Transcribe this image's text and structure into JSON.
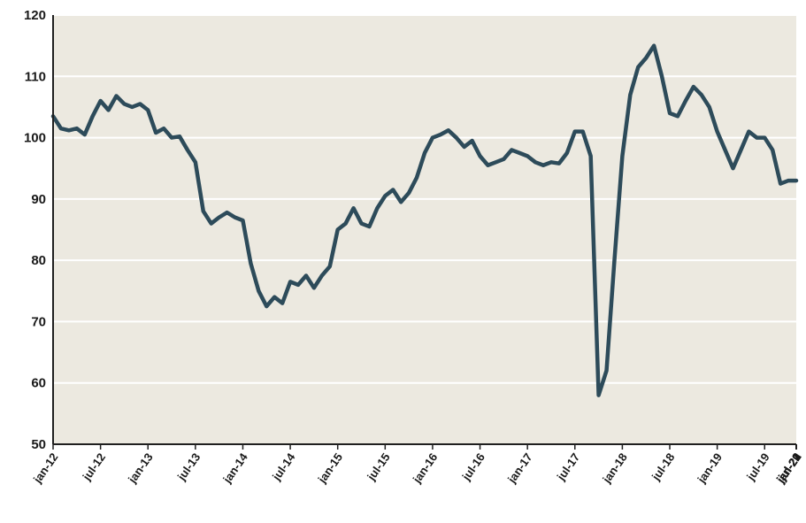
{
  "chart_data": {
    "type": "line",
    "title": "",
    "xlabel": "",
    "ylabel": "",
    "ylim": [
      50,
      120
    ],
    "y_ticks": [
      50,
      60,
      70,
      80,
      90,
      100,
      110,
      120
    ],
    "grid": "horizontal",
    "legend": "none",
    "x_tick_labels": [
      "jan-12",
      "jul-12",
      "jan-13",
      "jul-13",
      "jan-14",
      "jul-14",
      "jan-15",
      "jul-15",
      "jan-16",
      "jul-16",
      "jan-17",
      "jul-17",
      "jan-18",
      "jul-18",
      "jan-19",
      "jul-19",
      "jan-20",
      "jul-20",
      "jan-21",
      "jul-21",
      "jan-22",
      "jul-22",
      "jan-23"
    ],
    "x_range": [
      "jan-12",
      "feb-23"
    ],
    "series": [
      {
        "values": [
          103.5,
          101.5,
          101.2,
          101.5,
          100.5,
          103.5,
          106,
          104.5,
          106.8,
          105.5,
          105,
          105.5,
          104.5,
          100.8,
          101.5,
          100,
          100.2,
          98,
          96,
          88,
          86,
          87,
          87.8,
          87,
          86.5,
          79.5,
          75,
          72.5,
          74,
          73,
          76.5,
          76,
          77.5,
          75.5,
          77.5,
          79,
          85,
          86,
          88.5,
          86,
          85.5,
          88.5,
          90.5,
          91.5,
          89.5,
          91,
          93.5,
          97.5,
          100,
          100.5,
          101.2,
          100,
          98.5,
          99.5,
          97,
          95.5,
          96,
          96.5,
          98,
          97.5,
          97,
          96,
          95.5,
          96,
          95.8,
          97.5,
          101,
          101,
          97,
          58,
          62,
          80,
          97,
          107,
          111.5,
          113,
          115,
          110,
          104,
          103.5,
          106,
          108.3,
          107,
          105,
          101,
          98,
          95,
          98,
          101,
          100,
          100,
          98,
          92.5,
          93,
          93
        ],
        "color": "#2d4b5a"
      }
    ],
    "colors": {
      "plot_background": "#ece9e0",
      "gridline": "#ffffff",
      "axis": "#1f1f1f",
      "line": "#2d4b5a"
    }
  }
}
